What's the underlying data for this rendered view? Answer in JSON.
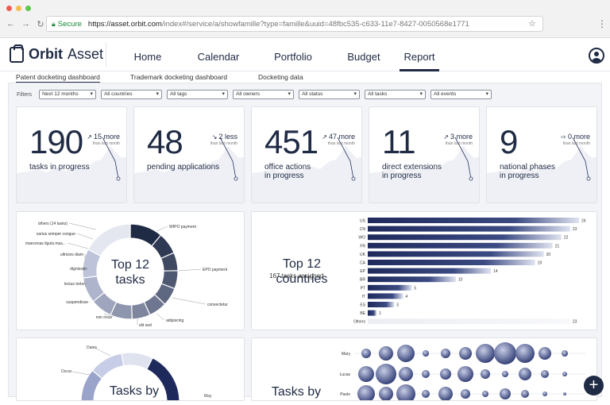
{
  "browser": {
    "secure_label": "Secure",
    "url_host": "https://asset.orbit.com",
    "url_rest": "/index#/service/a/showfamille?type=famille&uuid=48fbc535-c633-11e7-8427-0050568e1771"
  },
  "app": {
    "logo_bold": "Orbit",
    "logo_light": "Asset"
  },
  "nav": {
    "items": [
      "Home",
      "Calendar",
      "Portfolio",
      "Budget",
      "Report"
    ],
    "active": "Report"
  },
  "subtabs": [
    "Patent docketing dashboard",
    "Trademark docketing dashboard",
    "Docketing data"
  ],
  "filters": {
    "label": "Filters",
    "selects": [
      "Next 12 months",
      "All countries",
      "All tags",
      "All owners",
      "All status",
      "All tasks",
      "All events"
    ]
  },
  "kpis": [
    {
      "value": "190",
      "label1": "tasks in progress",
      "label2": "",
      "delta": "15 more",
      "arrow": "↗",
      "sub": "than last month"
    },
    {
      "value": "48",
      "label1": "pending applications",
      "label2": "",
      "delta": "2 less",
      "arrow": "↘",
      "sub": "than last month"
    },
    {
      "value": "451",
      "label1": "office actions",
      "label2": "in progress",
      "delta": "47 more",
      "arrow": "↗",
      "sub": "than last month"
    },
    {
      "value": "11",
      "label1": "direct extensions",
      "label2": "in progress",
      "delta": "3 more",
      "arrow": "↗",
      "sub": "than last month"
    },
    {
      "value": "9",
      "label1": "national phases",
      "label2": "in progress",
      "delta": "0 more",
      "arrow": "⇨",
      "sub": "than last month"
    }
  ],
  "donut": {
    "title1": "Top 12",
    "title2": "tasks",
    "left_labels": [
      "others (14 tasks)",
      "varius semper congue",
      "maecenas ligula mas...",
      "ultricies diam",
      "dignissim",
      "lectus tortor",
      "suspendisse",
      "non risus"
    ],
    "right_labels": [
      "WIPO payment",
      "EPO payment",
      "consectetur",
      "adipiscing",
      "elit sed"
    ]
  },
  "chart_data": [
    {
      "type": "bar",
      "title": "Top 12 countries",
      "subtitle": "167 tasks assigned",
      "categories": [
        "US",
        "CN",
        "WO",
        "FR",
        "UK",
        "CA",
        "EP",
        "BR",
        "PT",
        "IT",
        "ES",
        "BE",
        "Others"
      ],
      "values": [
        24,
        23,
        22,
        21,
        20,
        19,
        14,
        10,
        5,
        4,
        3,
        1,
        23
      ],
      "xlim": [
        0,
        24
      ]
    }
  ],
  "bottom_left": {
    "title": "Tasks by",
    "labels": [
      "Dates",
      "Oscar",
      "May"
    ]
  },
  "bottom_right": {
    "title": "Tasks by",
    "rows": [
      "Mary",
      "Lucas",
      "Paolo"
    ]
  },
  "colors": {
    "navy": "#1f2a44",
    "accent": "#3b4a82",
    "light": "#c7cde6"
  }
}
